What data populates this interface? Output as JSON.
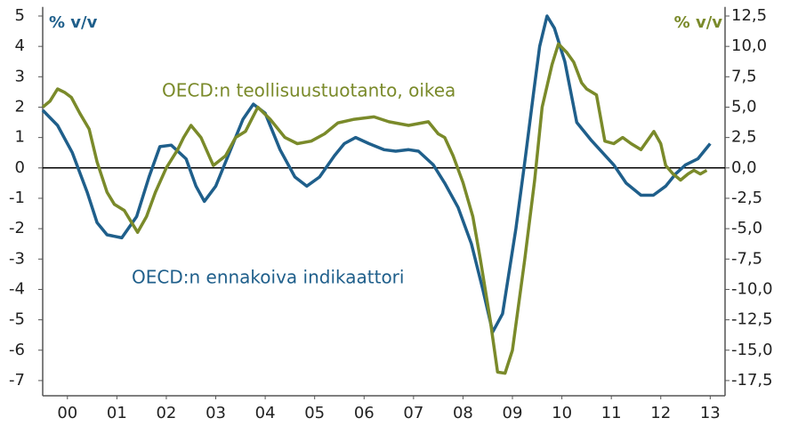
{
  "chart_data": {
    "type": "line",
    "annotations": [
      "% v/v",
      "% v/v",
      "OECD:n teollisuustuotanto, oikea",
      "OECD:n ennakoiva indikaattori"
    ],
    "xlim": [
      0,
      13.8
    ],
    "xticks": [
      {
        "value": 0.5,
        "label": "00"
      },
      {
        "value": 1.5,
        "label": "01"
      },
      {
        "value": 2.5,
        "label": "02"
      },
      {
        "value": 3.5,
        "label": "03"
      },
      {
        "value": 4.5,
        "label": "04"
      },
      {
        "value": 5.5,
        "label": "05"
      },
      {
        "value": 6.5,
        "label": "06"
      },
      {
        "value": 7.5,
        "label": "07"
      },
      {
        "value": 8.5,
        "label": "08"
      },
      {
        "value": 9.5,
        "label": "09"
      },
      {
        "value": 10.5,
        "label": "10"
      },
      {
        "value": 11.5,
        "label": "11"
      },
      {
        "value": 12.5,
        "label": "12"
      },
      {
        "value": 13.5,
        "label": "13"
      }
    ],
    "ylim": [
      -7.5,
      5.3
    ],
    "yticks": [
      -7,
      -6,
      -5,
      -4,
      -3,
      -2,
      -1,
      0,
      1,
      2,
      3,
      4,
      5
    ],
    "y2lim": [
      -18.75,
      13.25
    ],
    "y2ticks": [
      {
        "value": -17.5,
        "label": "-17,5"
      },
      {
        "value": -15,
        "label": "-15,0"
      },
      {
        "value": -12.5,
        "label": "-12,5"
      },
      {
        "value": -10,
        "label": "-10,0"
      },
      {
        "value": -7.5,
        "label": "-7,5"
      },
      {
        "value": -5,
        "label": "-5,0"
      },
      {
        "value": -2.5,
        "label": "-2,5"
      },
      {
        "value": 0,
        "label": "0,0"
      },
      {
        "value": 2.5,
        "label": "2,5"
      },
      {
        "value": 5,
        "label": "5,0"
      },
      {
        "value": 7.5,
        "label": "7,5"
      },
      {
        "value": 10,
        "label": "10,0"
      },
      {
        "value": 12.5,
        "label": "12,5"
      }
    ],
    "series": [
      {
        "name": "OECD:n ennakoiva indikaattori",
        "color": "#1f5f8b",
        "axis": "y",
        "x": [
          0,
          0.3,
          0.6,
          0.9,
          1.1,
          1.3,
          1.6,
          1.9,
          2.15,
          2.37,
          2.6,
          2.9,
          3.1,
          3.27,
          3.5,
          3.8,
          4.05,
          4.26,
          4.5,
          4.8,
          5.1,
          5.34,
          5.6,
          5.9,
          6.1,
          6.33,
          6.6,
          6.9,
          7.14,
          7.4,
          7.6,
          7.9,
          8.13,
          8.4,
          8.67,
          8.9,
          9.1,
          9.3,
          9.57,
          9.75,
          9.93,
          10.05,
          10.2,
          10.35,
          10.56,
          10.8,
          11.1,
          11.55,
          11.8,
          12.1,
          12.35,
          12.6,
          12.8,
          13.0,
          13.25,
          13.5
        ],
        "values": [
          1.9,
          1.4,
          0.5,
          -0.8,
          -1.8,
          -2.2,
          -2.3,
          -1.6,
          -0.3,
          0.7,
          0.75,
          0.3,
          -0.6,
          -1.1,
          -0.6,
          0.6,
          1.6,
          2.1,
          1.8,
          0.6,
          -0.3,
          -0.6,
          -0.3,
          0.4,
          0.8,
          1.0,
          0.8,
          0.6,
          0.55,
          0.6,
          0.55,
          0.1,
          -0.5,
          -1.3,
          -2.5,
          -4.0,
          -5.4,
          -4.8,
          -2.0,
          0.2,
          2.5,
          4.0,
          5.0,
          4.6,
          3.5,
          1.5,
          0.9,
          0.1,
          -0.5,
          -0.9,
          -0.9,
          -0.6,
          -0.2,
          0.1,
          0.3,
          0.8
        ]
      },
      {
        "name": "OECD:n teollisuustuotanto, oikea",
        "color": "#7a8a2a",
        "axis": "y2",
        "x": [
          0,
          0.15,
          0.3,
          0.45,
          0.58,
          0.75,
          0.94,
          1.1,
          1.3,
          1.45,
          1.65,
          1.8,
          1.92,
          2.1,
          2.28,
          2.5,
          2.73,
          2.85,
          3.0,
          3.2,
          3.45,
          3.7,
          3.9,
          4.1,
          4.35,
          4.6,
          4.9,
          5.15,
          5.43,
          5.7,
          5.97,
          6.3,
          6.7,
          7.0,
          7.4,
          7.8,
          8.0,
          8.13,
          8.3,
          8.5,
          8.7,
          8.85,
          9.05,
          9.2,
          9.35,
          9.5,
          9.75,
          9.95,
          10.1,
          10.3,
          10.43,
          10.6,
          10.74,
          10.9,
          11.0,
          11.2,
          11.37,
          11.55,
          11.73,
          11.9,
          12.1,
          12.36,
          12.5,
          12.6,
          12.75,
          12.9,
          13.05,
          13.17,
          13.3,
          13.43
        ],
        "values": [
          5.0,
          5.5,
          6.5,
          6.2,
          5.8,
          4.5,
          3.2,
          0.5,
          -2.0,
          -3.0,
          -3.5,
          -4.5,
          -5.3,
          -4.0,
          -2.0,
          0.0,
          1.5,
          2.5,
          3.5,
          2.5,
          0.2,
          1.0,
          2.5,
          3.0,
          5.0,
          4.0,
          2.5,
          2.0,
          2.2,
          2.8,
          3.7,
          4.0,
          4.2,
          3.8,
          3.5,
          3.8,
          2.8,
          2.5,
          1.0,
          -1.2,
          -4.0,
          -7.5,
          -12.5,
          -16.8,
          -16.9,
          -15.0,
          -7.5,
          -1.0,
          5.0,
          8.5,
          10.2,
          9.5,
          8.7,
          7.0,
          6.5,
          6.0,
          2.2,
          2.0,
          2.5,
          2.0,
          1.5,
          3.0,
          2.0,
          0.2,
          -0.5,
          -1.0,
          -0.5,
          -0.2,
          -0.5,
          -0.2
        ]
      }
    ]
  }
}
